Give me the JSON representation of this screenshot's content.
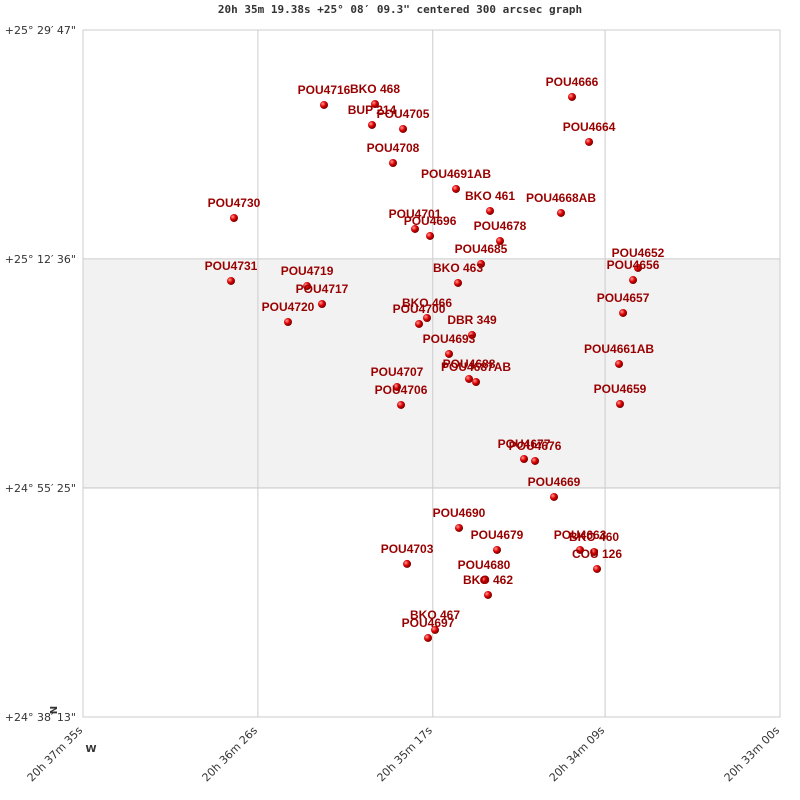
{
  "chart_data": {
    "type": "scatter",
    "title": "20h 35m 19.38s +25° 08′ 09.3\" centered 300 arcsec graph",
    "compass_north": "N",
    "compass_west": "W",
    "color": "#cc0000",
    "label_color": "#990000",
    "grid": true,
    "xlim": [
      309.3958,
      308.25
    ],
    "ylim": [
      24.6369,
      25.4964
    ],
    "xticks": [
      {
        "value": 309.3958,
        "label": "20h 37m 35s"
      },
      {
        "value": 309.1083,
        "label": "20h 36m 26s"
      },
      {
        "value": 308.8208,
        "label": "20h 35m 17s"
      },
      {
        "value": 308.5375,
        "label": "20h 34m 09s"
      },
      {
        "value": 308.25,
        "label": "20h 33m 00s"
      }
    ],
    "yticks": [
      {
        "value": 24.6369,
        "label": "+24° 38′ 13\""
      },
      {
        "value": 24.9236,
        "label": "+24° 55′ 25\""
      },
      {
        "value": 25.21,
        "label": "+25° 12′ 36\""
      },
      {
        "value": 25.4964,
        "label": "+25° 29′ 47\""
      }
    ],
    "labels": [
      "POU4716",
      "BKO 468",
      "BUP 214",
      "POU4705",
      "POU4708",
      "POU4666",
      "POU4664",
      "POU4691AB",
      "BKO 461",
      "POU4668AB",
      "POU4730",
      "POU4701",
      "POU4696",
      "POU4678",
      "POU4685",
      "POU4652",
      "POU4656",
      "BKO 463",
      "POU4731",
      "POU4719",
      "POU4717",
      "POU4720",
      "POU4657",
      "BKO 466",
      "POU4700",
      "DBR 349",
      "POU4693",
      "POU4661AB",
      "POU4688",
      "POU4687AB",
      "POU4707",
      "POU4706",
      "POU4659",
      "POU4677",
      "POU4676",
      "POU4669",
      "POU4690",
      "POU4679",
      "POU4663",
      "BKO 460",
      "COU 126",
      "POU4703",
      "POU4680",
      "BKO 462",
      "BKO 467",
      "POU4697"
    ],
    "x": [
      308.9996,
      308.9158,
      308.9207,
      308.8697,
      308.8862,
      308.5919,
      308.5639,
      308.7826,
      308.7267,
      308.61,
      309.1476,
      308.85,
      308.8253,
      308.7103,
      308.7415,
      308.4834,
      308.4916,
      308.7793,
      309.1525,
      309.0275,
      309.0029,
      309.0588,
      308.508,
      308.8303,
      308.8434,
      308.7563,
      308.7941,
      308.5146,
      308.7612,
      308.7497,
      308.8796,
      308.873,
      308.513,
      308.6708,
      308.6527,
      308.6215,
      308.7777,
      308.7152,
      308.5787,
      308.5557,
      308.5508,
      308.8631,
      308.7366,
      308.73,
      308.8171,
      308.8286
    ],
    "y": [
      25.4026,
      25.4038,
      25.3776,
      25.3726,
      25.33,
      25.4126,
      25.3563,
      25.2975,
      25.27,
      25.2675,
      25.2612,
      25.2475,
      25.2387,
      25.2324,
      25.2037,
      25.1987,
      25.1836,
      25.1799,
      25.1824,
      25.1761,
      25.1536,
      25.1311,
      25.1424,
      25.1361,
      25.1286,
      25.1148,
      25.0911,
      25.0786,
      25.0598,
      25.056,
      25.0498,
      25.0273,
      25.0285,
      24.9597,
      24.9572,
      24.9122,
      24.8734,
      24.8459,
      24.8459,
      24.8434,
      24.8221,
      24.8284,
      24.8083,
      24.7896,
      24.7458,
      24.7358
    ]
  }
}
